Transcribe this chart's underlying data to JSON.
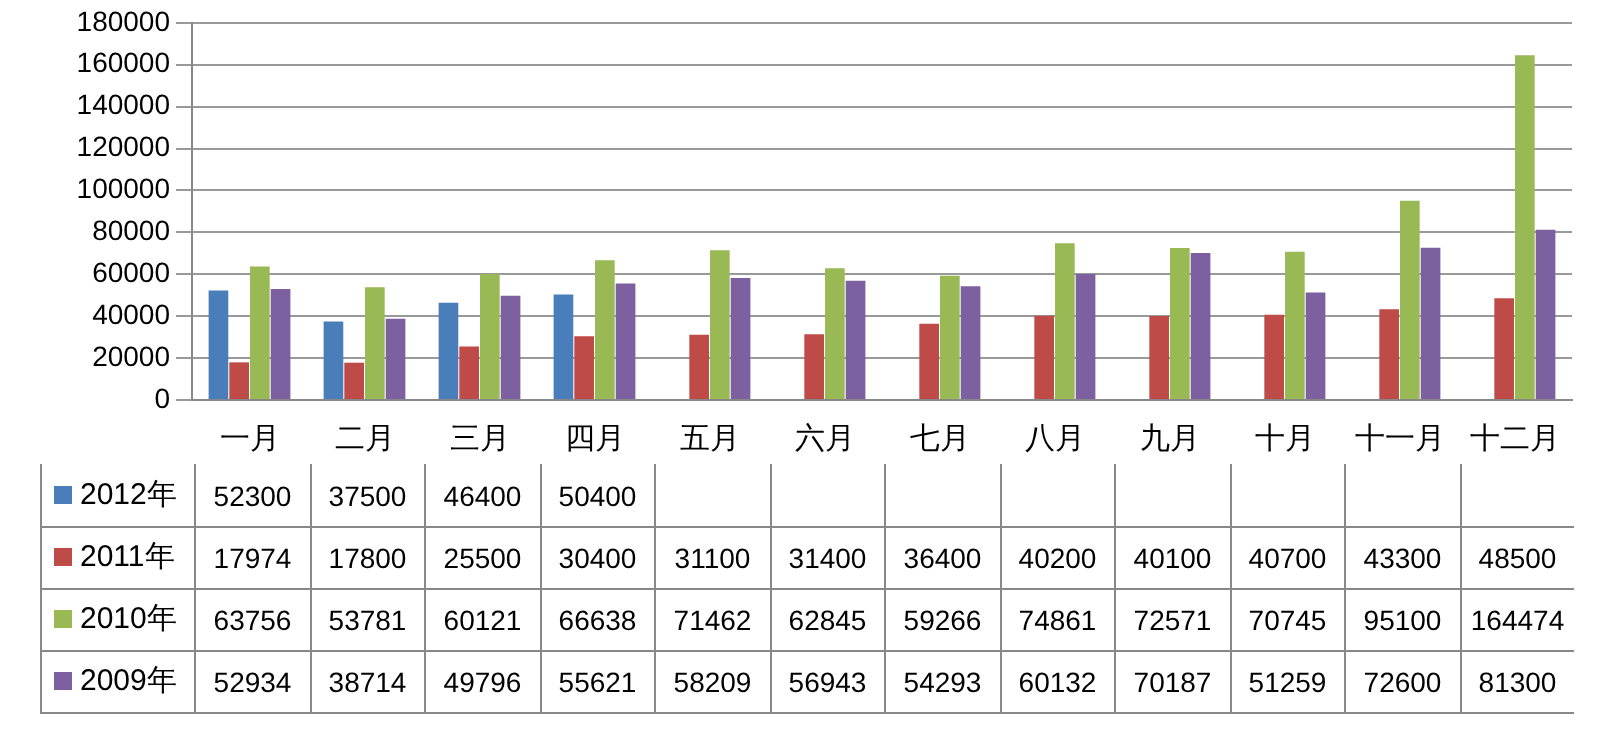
{
  "chart_data": {
    "type": "bar",
    "categories": [
      "一月",
      "二月",
      "三月",
      "四月",
      "五月",
      "六月",
      "七月",
      "八月",
      "九月",
      "十月",
      "十一月",
      "十二月"
    ],
    "series": [
      {
        "name": "2012年",
        "color": "#4a7ebb",
        "values": [
          52300,
          37500,
          46400,
          50400,
          null,
          null,
          null,
          null,
          null,
          null,
          null,
          null
        ]
      },
      {
        "name": "2011年",
        "color": "#be4b48",
        "values": [
          17974,
          17800,
          25500,
          30400,
          31100,
          31400,
          36400,
          40200,
          40100,
          40700,
          43300,
          48500
        ]
      },
      {
        "name": "2010年",
        "color": "#98b954",
        "values": [
          63756,
          53781,
          60121,
          66638,
          71462,
          62845,
          59266,
          74861,
          72571,
          70745,
          95100,
          164474
        ]
      },
      {
        "name": "2009年",
        "color": "#7d60a0",
        "values": [
          52934,
          38714,
          49796,
          55621,
          58209,
          56943,
          54293,
          60132,
          70187,
          51259,
          72600,
          81300
        ]
      }
    ],
    "ylim": [
      0,
      180000
    ],
    "yticks": [
      0,
      20000,
      40000,
      60000,
      80000,
      100000,
      120000,
      140000,
      160000,
      180000
    ],
    "grid": "y",
    "legend": "bottom",
    "data_labels": true
  }
}
